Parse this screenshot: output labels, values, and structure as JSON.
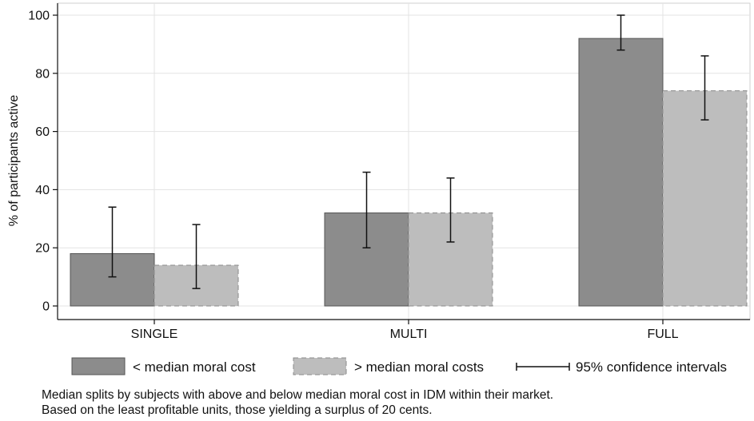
{
  "chart_data": {
    "type": "bar",
    "categories": [
      "SINGLE",
      "MULTI",
      "FULL"
    ],
    "series": [
      {
        "name": "< median moral cost",
        "values": [
          18,
          32,
          92
        ],
        "ci_low": [
          10,
          20,
          88
        ],
        "ci_high": [
          34,
          46,
          100
        ],
        "color": "#8c8c8c",
        "border": "#555555",
        "dashed": false
      },
      {
        "name": "> median moral costs",
        "values": [
          14,
          32,
          74
        ],
        "ci_low": [
          6,
          22,
          64
        ],
        "ci_high": [
          28,
          44,
          86
        ],
        "color": "#bdbdbd",
        "border": "#8a8a8a",
        "dashed": true
      }
    ],
    "ylabel": "% of participants active",
    "xlabel": "",
    "ylim": [
      0,
      100
    ],
    "yticks": [
      0,
      20,
      40,
      60,
      80,
      100
    ],
    "grid": true,
    "legend_position": "bottom",
    "ci_legend_label": "95% confidence intervals"
  },
  "notes": {
    "line1": "Median splits by subjects with above and below median moral cost in IDM within their market.",
    "line2": "Based on the least profitable units, those yielding a surplus of 20 cents."
  }
}
